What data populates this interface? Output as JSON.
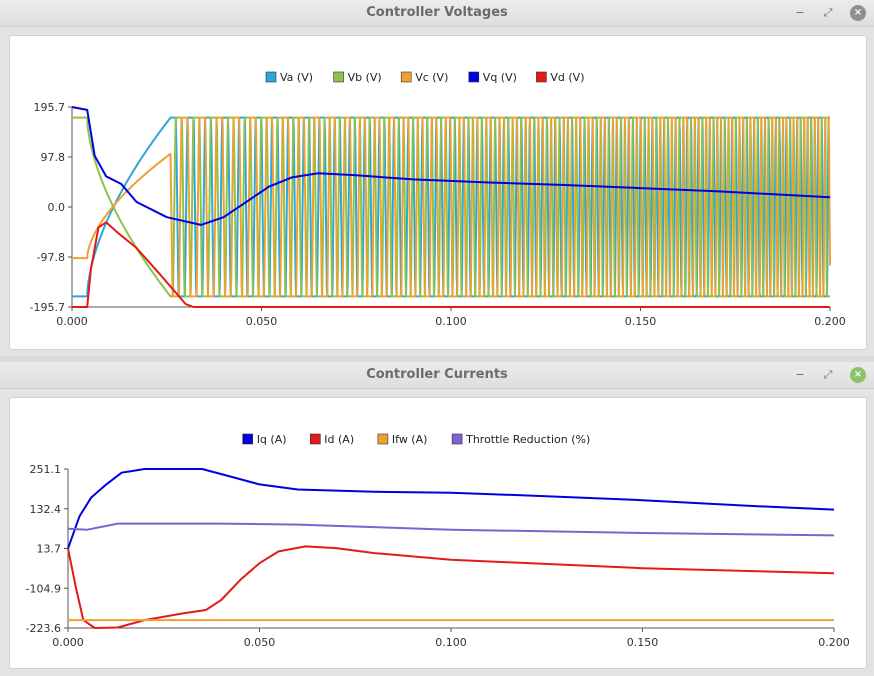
{
  "windows": [
    {
      "title": "Controller Voltages",
      "buttons": {
        "minimize": "−",
        "maximize": "⤢",
        "close": "×"
      },
      "chart_data": {
        "type": "line",
        "xlim": [
          0,
          0.2
        ],
        "ylim": [
          -195.7,
          195.7
        ],
        "x_ticks": [
          "0.000",
          "0.050",
          "0.100",
          "0.150",
          "0.200"
        ],
        "y_ticks": [
          "195.7",
          "97.8",
          "0.0",
          "-97.8",
          "-195.7"
        ],
        "legend_position": "top-center",
        "series": [
          {
            "name": "Va (V)",
            "color": "#2ea6d8",
            "kind": "phase",
            "start": -175,
            "phase_deg": 0
          },
          {
            "name": "Vb (V)",
            "color": "#8cc34a",
            "kind": "phase",
            "start": 175,
            "phase_deg": 240
          },
          {
            "name": "Vc (V)",
            "color": "#f0a030",
            "kind": "phase",
            "start": -100,
            "phase_deg": 120
          },
          {
            "name": "Vq (V)",
            "color": "#0000e0",
            "kind": "line",
            "points": [
              [
                0,
                195.7
              ],
              [
                0.004,
                190
              ],
              [
                0.006,
                100
              ],
              [
                0.009,
                60
              ],
              [
                0.013,
                45
              ],
              [
                0.017,
                10
              ],
              [
                0.025,
                -20
              ],
              [
                0.034,
                -35
              ],
              [
                0.04,
                -20
              ],
              [
                0.046,
                10
              ],
              [
                0.052,
                40
              ],
              [
                0.058,
                58
              ],
              [
                0.065,
                66
              ],
              [
                0.075,
                62
              ],
              [
                0.09,
                54
              ],
              [
                0.11,
                48
              ],
              [
                0.13,
                43
              ],
              [
                0.15,
                37
              ],
              [
                0.17,
                31
              ],
              [
                0.2,
                19
              ]
            ]
          },
          {
            "name": "Vd (V)",
            "color": "#e41a1a",
            "kind": "line",
            "points": [
              [
                0,
                -195.7
              ],
              [
                0.004,
                -195.7
              ],
              [
                0.005,
                -120
              ],
              [
                0.007,
                -40
              ],
              [
                0.009,
                -30
              ],
              [
                0.012,
                -50
              ],
              [
                0.017,
                -80
              ],
              [
                0.023,
                -130
              ],
              [
                0.03,
                -190
              ],
              [
                0.032,
                -195.7
              ],
              [
                0.2,
                -195.7
              ]
            ]
          }
        ]
      }
    },
    {
      "title": "Controller Currents",
      "buttons": {
        "minimize": "−",
        "maximize": "⤢",
        "close": "×"
      },
      "chart_data": {
        "type": "line",
        "xlim": [
          0,
          0.2
        ],
        "ylim": [
          -223.6,
          251.1
        ],
        "x_ticks": [
          "0.000",
          "0.050",
          "0.100",
          "0.150",
          "0.200"
        ],
        "y_ticks": [
          "251.1",
          "132.4",
          "13.7",
          "-104.9",
          "-223.6"
        ],
        "legend_position": "top-center",
        "series": [
          {
            "name": "Iq (A)",
            "color": "#0000e0",
            "points": [
              [
                0,
                13.7
              ],
              [
                0.003,
                110
              ],
              [
                0.006,
                165
              ],
              [
                0.01,
                205
              ],
              [
                0.014,
                240
              ],
              [
                0.02,
                251
              ],
              [
                0.035,
                251
              ],
              [
                0.042,
                230
              ],
              [
                0.05,
                205
              ],
              [
                0.06,
                190
              ],
              [
                0.08,
                183
              ],
              [
                0.1,
                180
              ],
              [
                0.12,
                172
              ],
              [
                0.15,
                158
              ],
              [
                0.18,
                140
              ],
              [
                0.2,
                130
              ]
            ]
          },
          {
            "name": "Id (A)",
            "color": "#e41a1a",
            "points": [
              [
                0,
                13.7
              ],
              [
                0.002,
                -100
              ],
              [
                0.004,
                -200
              ],
              [
                0.007,
                -225
              ],
              [
                0.013,
                -222
              ],
              [
                0.02,
                -200
              ],
              [
                0.03,
                -180
              ],
              [
                0.036,
                -170
              ],
              [
                0.04,
                -140
              ],
              [
                0.045,
                -80
              ],
              [
                0.05,
                -30
              ],
              [
                0.055,
                5
              ],
              [
                0.062,
                20
              ],
              [
                0.07,
                15
              ],
              [
                0.08,
                0
              ],
              [
                0.1,
                -20
              ],
              [
                0.15,
                -45
              ],
              [
                0.2,
                -60
              ]
            ]
          },
          {
            "name": "Ifw (A)",
            "color": "#f0a030",
            "points": [
              [
                0,
                -200
              ],
              [
                0.2,
                -200
              ]
            ]
          },
          {
            "name": "Throttle Reduction (%)",
            "color": "#7e62d4",
            "points": [
              [
                0,
                73
              ],
              [
                0.005,
                70
              ],
              [
                0.013,
                88
              ],
              [
                0.02,
                88
              ],
              [
                0.04,
                88
              ],
              [
                0.06,
                85
              ],
              [
                0.1,
                70
              ],
              [
                0.15,
                60
              ],
              [
                0.2,
                53
              ]
            ]
          }
        ]
      }
    }
  ]
}
